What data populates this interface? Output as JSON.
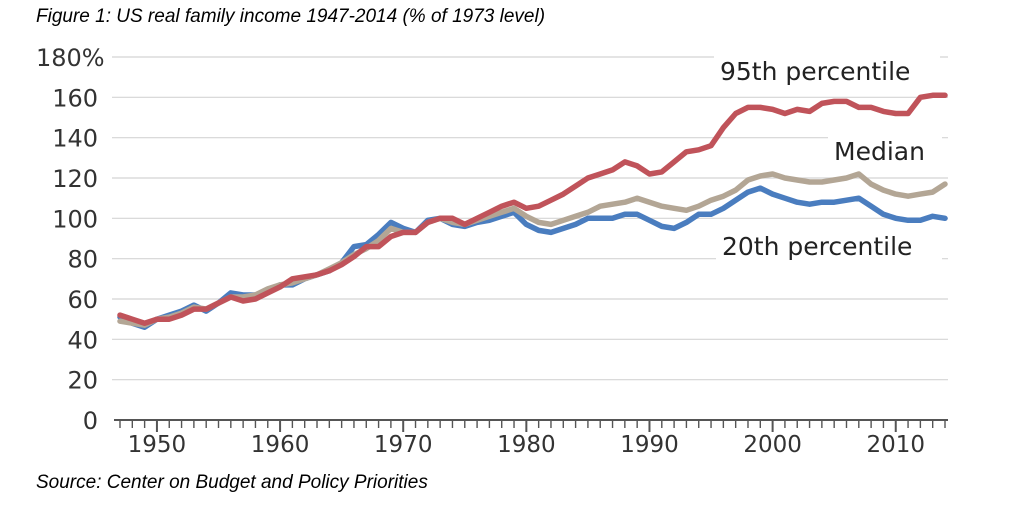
{
  "title": "Figure 1: US real family income 1947-2014 (% of 1973 level)",
  "source": "Source: Center on Budget and Policy Priorities",
  "chart_data": {
    "type": "line",
    "ylim": [
      0,
      180
    ],
    "xlim": [
      1947,
      2014
    ],
    "yticks": [
      "180%",
      "160",
      "140",
      "120",
      "100",
      "80",
      "60",
      "40",
      "20",
      "0"
    ],
    "ytick_values": [
      180,
      160,
      140,
      120,
      100,
      80,
      60,
      40,
      20,
      0
    ],
    "xticks": [
      "1950",
      "1960",
      "1970",
      "1980",
      "1990",
      "2000",
      "2010"
    ],
    "xtick_values": [
      1950,
      1960,
      1970,
      1980,
      1990,
      2000,
      2010
    ],
    "grid": true,
    "series": [
      {
        "name": "95th percentile",
        "color": "#c0535a",
        "x": [
          1947,
          1948,
          1949,
          1950,
          1951,
          1952,
          1953,
          1954,
          1955,
          1956,
          1957,
          1958,
          1959,
          1960,
          1961,
          1962,
          1963,
          1964,
          1965,
          1966,
          1967,
          1968,
          1969,
          1970,
          1971,
          1972,
          1973,
          1974,
          1975,
          1976,
          1977,
          1978,
          1979,
          1980,
          1981,
          1982,
          1983,
          1984,
          1985,
          1986,
          1987,
          1988,
          1989,
          1990,
          1991,
          1992,
          1993,
          1994,
          1995,
          1996,
          1997,
          1998,
          1999,
          2000,
          2001,
          2002,
          2003,
          2004,
          2005,
          2006,
          2007,
          2008,
          2009,
          2010,
          2011,
          2012,
          2013,
          2014
        ],
        "values": [
          52,
          50,
          48,
          50,
          50,
          52,
          55,
          55,
          58,
          61,
          59,
          60,
          63,
          66,
          70,
          71,
          72,
          74,
          77,
          81,
          86,
          86,
          91,
          93,
          93,
          98,
          100,
          100,
          97,
          100,
          103,
          106,
          108,
          105,
          106,
          109,
          112,
          116,
          120,
          122,
          124,
          128,
          126,
          122,
          123,
          128,
          133,
          134,
          136,
          145,
          152,
          155,
          155,
          154,
          152,
          154,
          153,
          157,
          158,
          158,
          155,
          155,
          153,
          152,
          152,
          160,
          161,
          161
        ]
      },
      {
        "name": "Median",
        "color": "#b3a695",
        "x": [
          1947,
          1948,
          1949,
          1950,
          1951,
          1952,
          1953,
          1954,
          1955,
          1956,
          1957,
          1958,
          1959,
          1960,
          1961,
          1962,
          1963,
          1964,
          1965,
          1966,
          1967,
          1968,
          1969,
          1970,
          1971,
          1972,
          1973,
          1974,
          1975,
          1976,
          1977,
          1978,
          1979,
          1980,
          1981,
          1982,
          1983,
          1984,
          1985,
          1986,
          1987,
          1988,
          1989,
          1990,
          1991,
          1992,
          1993,
          1994,
          1995,
          1996,
          1997,
          1998,
          1999,
          2000,
          2001,
          2002,
          2003,
          2004,
          2005,
          2006,
          2007,
          2008,
          2009,
          2010,
          2011,
          2012,
          2013,
          2014
        ],
        "values": [
          49,
          48,
          47,
          50,
          51,
          53,
          56,
          55,
          58,
          61,
          61,
          62,
          65,
          67,
          68,
          70,
          72,
          75,
          78,
          82,
          85,
          89,
          95,
          93,
          93,
          98,
          100,
          98,
          97,
          99,
          101,
          103,
          105,
          101,
          98,
          97,
          99,
          101,
          103,
          106,
          107,
          108,
          110,
          108,
          106,
          105,
          104,
          106,
          109,
          111,
          114,
          119,
          121,
          122,
          120,
          119,
          118,
          118,
          119,
          120,
          122,
          117,
          114,
          112,
          111,
          112,
          113,
          117
        ]
      },
      {
        "name": "20th percentile",
        "color": "#4a7dbf",
        "x": [
          1947,
          1948,
          1949,
          1950,
          1951,
          1952,
          1953,
          1954,
          1955,
          1956,
          1957,
          1958,
          1959,
          1960,
          1961,
          1962,
          1963,
          1964,
          1965,
          1966,
          1967,
          1968,
          1969,
          1970,
          1971,
          1972,
          1973,
          1974,
          1975,
          1976,
          1977,
          1978,
          1979,
          1980,
          1981,
          1982,
          1983,
          1984,
          1985,
          1986,
          1987,
          1988,
          1989,
          1990,
          1991,
          1992,
          1993,
          1994,
          1995,
          1996,
          1997,
          1998,
          1999,
          2000,
          2001,
          2002,
          2003,
          2004,
          2005,
          2006,
          2007,
          2008,
          2009,
          2010,
          2011,
          2012,
          2013,
          2014
        ],
        "values": [
          51,
          48,
          46,
          50,
          52,
          54,
          57,
          54,
          58,
          63,
          62,
          62,
          64,
          67,
          67,
          70,
          72,
          74,
          78,
          86,
          87,
          92,
          98,
          95,
          93,
          99,
          100,
          97,
          96,
          98,
          99,
          101,
          103,
          97,
          94,
          93,
          95,
          97,
          100,
          100,
          100,
          102,
          102,
          99,
          96,
          95,
          98,
          102,
          102,
          105,
          109,
          113,
          115,
          112,
          110,
          108,
          107,
          108,
          108,
          109,
          110,
          106,
          102,
          100,
          99,
          99,
          101,
          100
        ]
      }
    ]
  }
}
